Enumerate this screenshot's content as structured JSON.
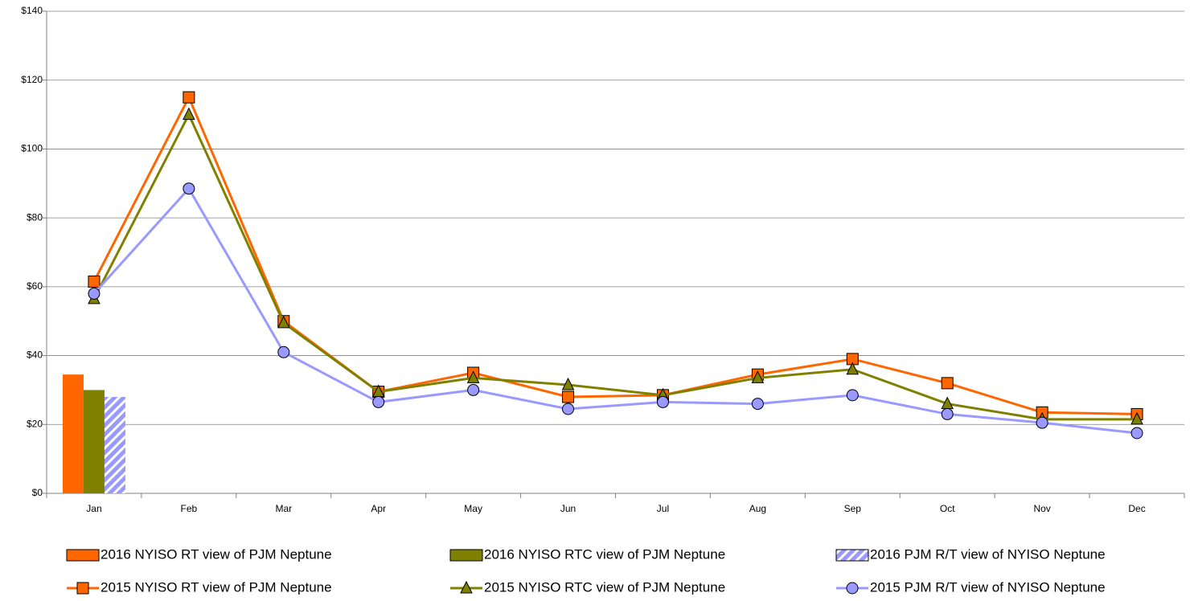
{
  "chart_data": {
    "type": "combo",
    "categories": [
      "Jan",
      "Feb",
      "Mar",
      "Apr",
      "May",
      "Jun",
      "Jul",
      "Aug",
      "Sep",
      "Oct",
      "Nov",
      "Dec"
    ],
    "ylim": [
      0,
      140
    ],
    "yticks": [
      {
        "value": 0,
        "label": "$0"
      },
      {
        "value": 20,
        "label": "$20"
      },
      {
        "value": 40,
        "label": "$40"
      },
      {
        "value": 60,
        "label": "$60"
      },
      {
        "value": 80,
        "label": "$80"
      },
      {
        "value": 100,
        "label": "$100"
      },
      {
        "value": 120,
        "label": "$120"
      },
      {
        "value": 140,
        "label": "$140"
      }
    ],
    "grid": true,
    "series": [
      {
        "name": "2016 NYISO RT view of PJM Neptune",
        "type": "bar",
        "color": "#ff6600",
        "values": [
          34.5,
          null,
          null,
          null,
          null,
          null,
          null,
          null,
          null,
          null,
          null,
          null
        ]
      },
      {
        "name": "2016 NYISO RTC view of PJM Neptune",
        "type": "bar",
        "color": "#808000",
        "values": [
          30,
          null,
          null,
          null,
          null,
          null,
          null,
          null,
          null,
          null,
          null,
          null
        ]
      },
      {
        "name": "2016 PJM R/T view of NYISO Neptune",
        "type": "bar",
        "color": "#9999ff",
        "pattern": "hatch",
        "values": [
          28,
          null,
          null,
          null,
          null,
          null,
          null,
          null,
          null,
          null,
          null,
          null
        ]
      },
      {
        "name": "2015 NYISO RT view of PJM Neptune",
        "type": "line",
        "color": "#ff6600",
        "marker": "square",
        "values": [
          61.5,
          115,
          50,
          29.5,
          35,
          28,
          28.5,
          34.5,
          39,
          32,
          23.5,
          23
        ]
      },
      {
        "name": "2015 NYISO RTC view of PJM Neptune",
        "type": "line",
        "color": "#808000",
        "marker": "triangle",
        "values": [
          56.5,
          110,
          49.5,
          29.5,
          33.5,
          31.5,
          28.5,
          33.5,
          36,
          26,
          21.5,
          21.5
        ]
      },
      {
        "name": "2015 PJM R/T view of NYISO Neptune",
        "type": "line",
        "color": "#9999ff",
        "marker": "circle",
        "values": [
          58,
          88.5,
          41,
          26.5,
          30,
          24.5,
          26.5,
          26,
          28.5,
          23,
          20.5,
          17.5
        ]
      }
    ]
  }
}
